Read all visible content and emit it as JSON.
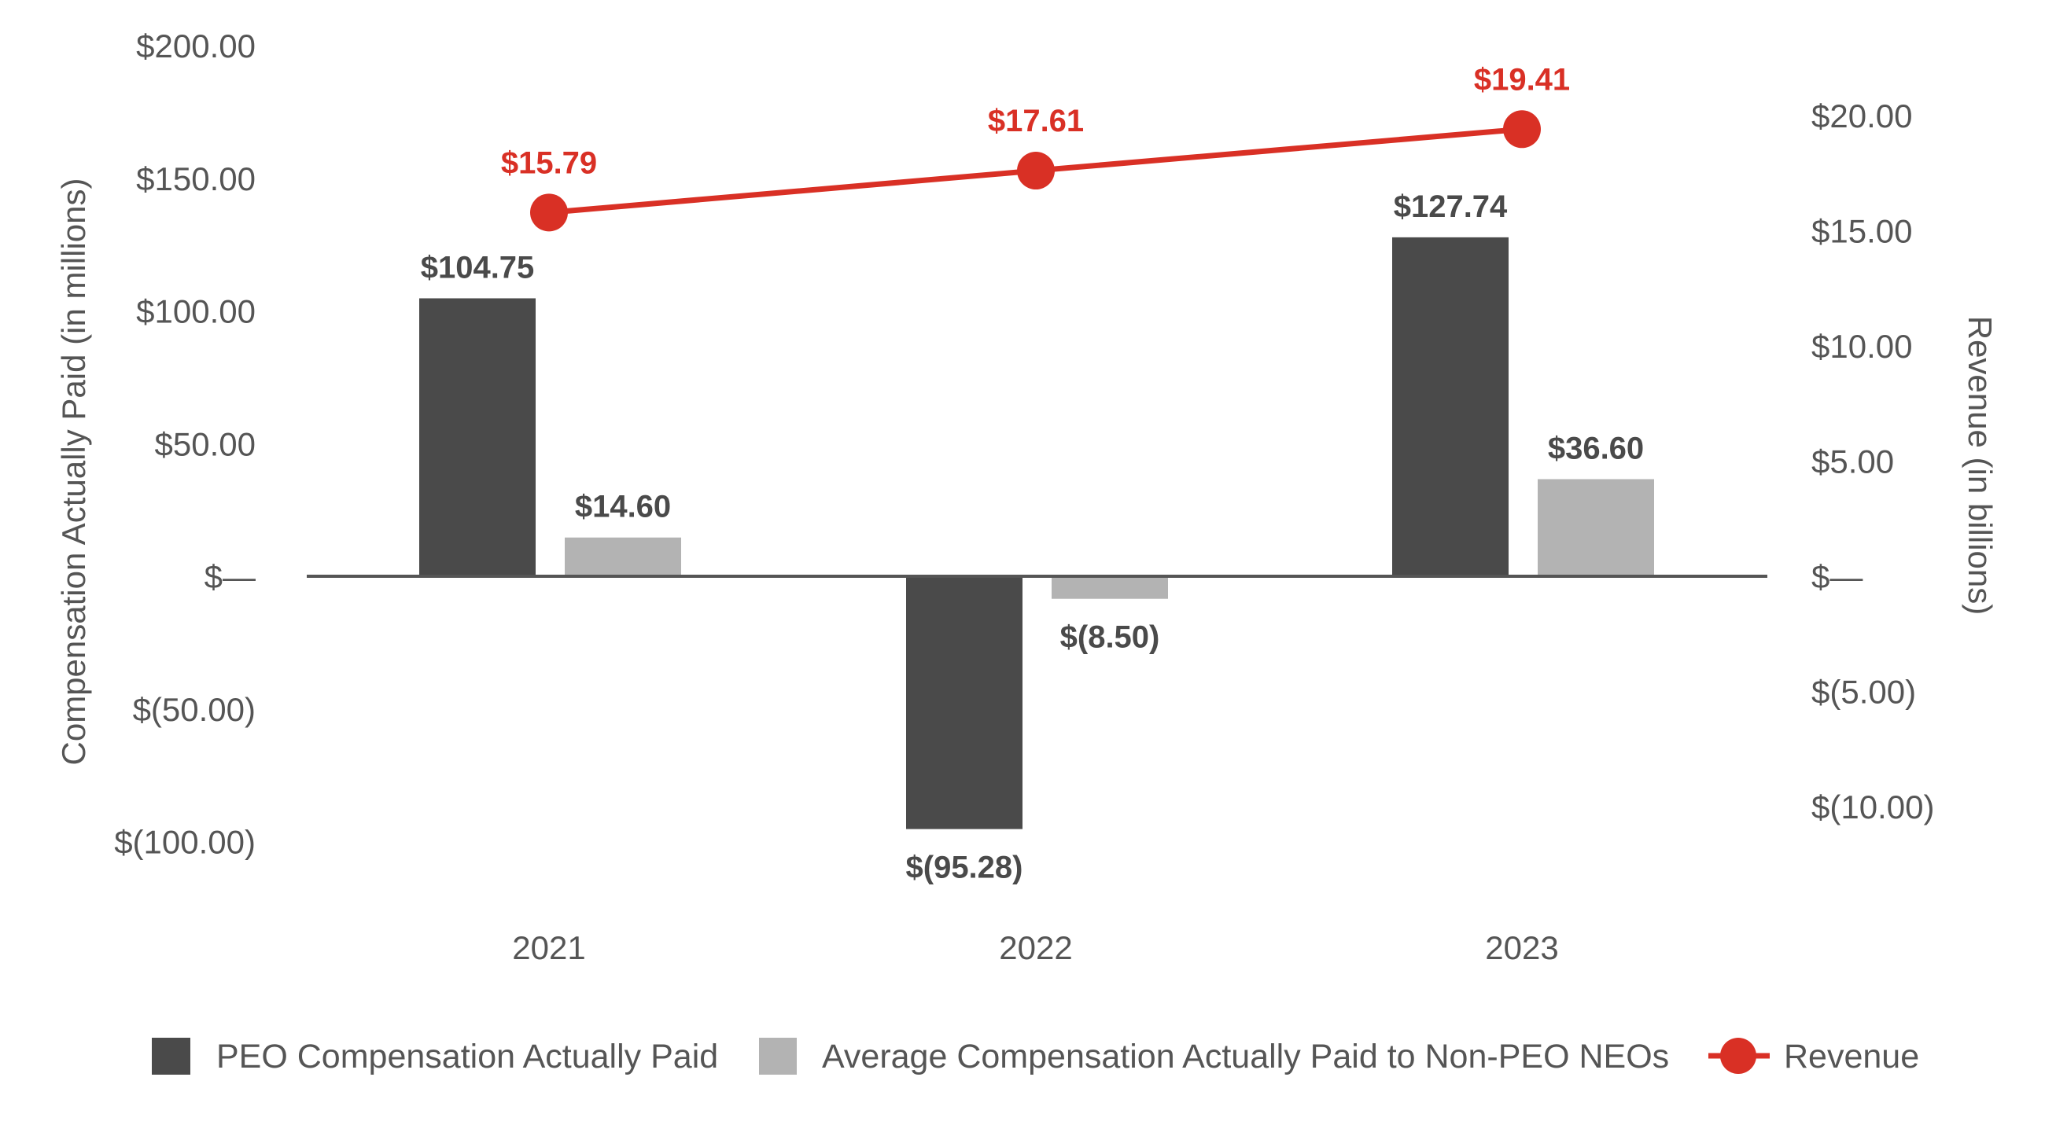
{
  "chart_data": {
    "type": "bar",
    "categories": [
      "2021",
      "2022",
      "2023"
    ],
    "series": [
      {
        "name": "PEO Compensation Actually Paid",
        "axis": "left",
        "type": "bar",
        "color": "#4a4a4a",
        "values": [
          104.75,
          -95.28,
          127.74
        ],
        "labels": [
          "$104.75",
          "$(95.28)",
          "$127.74"
        ]
      },
      {
        "name": "Average Compensation Actually Paid to Non-PEO NEOs",
        "axis": "left",
        "type": "bar",
        "color": "#b3b3b3",
        "values": [
          14.6,
          -8.5,
          36.6
        ],
        "labels": [
          "$14.60",
          "$(8.50)",
          "$36.60"
        ]
      },
      {
        "name": "Revenue",
        "axis": "right",
        "type": "line",
        "color": "#d93025",
        "values": [
          15.79,
          17.61,
          19.41
        ],
        "labels": [
          "$15.79",
          "$17.61",
          "$19.41"
        ]
      }
    ],
    "left_axis": {
      "label": "Compensation Actually Paid (in millions)",
      "ylim": [
        -100,
        200
      ],
      "ticks": [
        200,
        150,
        100,
        50,
        0,
        -50,
        -100
      ],
      "tick_labels": [
        "$200.00",
        "$150.00",
        "$100.00",
        "$50.00",
        "$—",
        "$(50.00)",
        "$(100.00)"
      ]
    },
    "right_axis": {
      "label": "Revenue (in billions)",
      "ylim": [
        -10,
        20
      ],
      "ticks": [
        20,
        15,
        10,
        5,
        0,
        -5,
        -10
      ],
      "tick_labels": [
        "$20.00",
        "$15.00",
        "$10.00",
        "$5.00",
        "$—",
        "$(5.00)",
        "$(10.00)"
      ]
    },
    "grid": false,
    "legend": "bottom"
  }
}
